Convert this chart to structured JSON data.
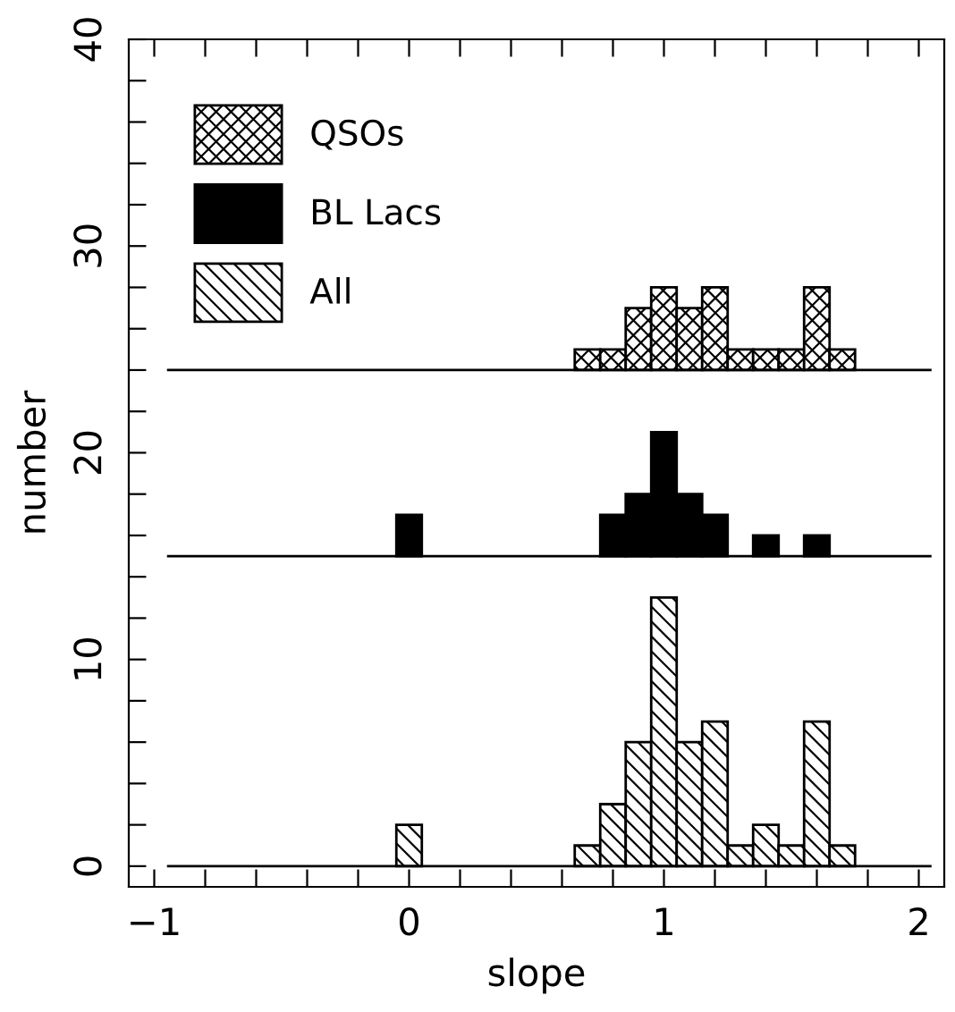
{
  "chart_data": {
    "type": "histogram",
    "xlabel": "slope",
    "ylabel": "number",
    "bins": [
      -0.95,
      -0.85,
      -0.75,
      -0.65,
      -0.55,
      -0.45,
      -0.35,
      -0.25,
      -0.15,
      -0.05,
      0.05,
      0.15,
      0.25,
      0.35,
      0.45,
      0.55,
      0.65,
      0.75,
      0.85,
      0.95,
      1.05,
      1.15,
      1.25,
      1.35,
      1.45,
      1.55,
      1.65,
      1.75,
      1.85,
      1.95,
      2.05
    ],
    "series": [
      {
        "name": "QSOs",
        "color": "#000000",
        "base": [
          null,
          null,
          null,
          null,
          null,
          null,
          null,
          null,
          null,
          null,
          null,
          null,
          null,
          null,
          null,
          null,
          24,
          24,
          24,
          24,
          24,
          24,
          24,
          24,
          24,
          24,
          24,
          null,
          null,
          null
        ],
        "values": [
          0,
          0,
          0,
          0,
          0,
          0,
          0,
          0,
          0,
          0,
          0,
          0,
          0,
          0,
          0,
          0,
          1,
          1,
          3,
          4,
          3,
          4,
          1,
          1,
          1,
          4,
          1,
          0,
          0,
          0
        ]
      },
      {
        "name": "BL Lacs",
        "color": "#000000",
        "base": [
          null,
          null,
          null,
          null,
          null,
          null,
          null,
          null,
          null,
          15,
          null,
          null,
          null,
          null,
          null,
          null,
          null,
          15,
          15,
          15,
          15,
          15,
          null,
          15,
          null,
          15,
          null,
          null,
          null,
          null
        ],
        "values": [
          0,
          0,
          0,
          0,
          0,
          0,
          0,
          0,
          0,
          2,
          0,
          0,
          0,
          0,
          0,
          0,
          0,
          2,
          3,
          6,
          3,
          2,
          0,
          1,
          0,
          1,
          0,
          0,
          0,
          0
        ]
      },
      {
        "name": "All",
        "color": "#000000",
        "base": [
          null,
          null,
          null,
          null,
          null,
          null,
          null,
          null,
          null,
          0,
          null,
          null,
          null,
          null,
          null,
          null,
          0,
          0,
          0,
          0,
          0,
          0,
          0,
          0,
          0,
          0,
          0,
          null,
          null,
          null
        ],
        "values": [
          0,
          0,
          0,
          0,
          0,
          0,
          0,
          0,
          0,
          2,
          0,
          0,
          0,
          0,
          0,
          0,
          1,
          3,
          6,
          13,
          6,
          7,
          1,
          2,
          1,
          7,
          1,
          0,
          0,
          0
        ]
      }
    ],
    "ref_lines": [
      {
        "axis": "y",
        "value": 24,
        "color": "#000000"
      },
      {
        "axis": "y",
        "value": 15,
        "color": "#000000"
      },
      {
        "axis": "y",
        "value": 0,
        "color": "#000000"
      }
    ],
    "xlim": [
      -1.1,
      2.1
    ],
    "ylim": [
      -1,
      40
    ],
    "xticks": [
      -1,
      {
        "value": -0.8,
        "label": null
      },
      {
        "value": -0.6,
        "label": null
      },
      {
        "value": -0.4,
        "label": null
      },
      {
        "value": -0.2,
        "label": null
      },
      0,
      {
        "value": 0.2,
        "label": null
      },
      {
        "value": 0.4,
        "label": null
      },
      {
        "value": 0.6,
        "label": null
      },
      {
        "value": 0.8,
        "label": null
      },
      1,
      {
        "value": 1.2,
        "label": null
      },
      {
        "value": 1.4,
        "label": null
      },
      {
        "value": 1.6,
        "label": null
      },
      {
        "value": 1.8,
        "label": null
      },
      2
    ],
    "yticks": [
      0,
      {
        "value": 2,
        "label": null
      },
      {
        "value": 4,
        "label": null
      },
      {
        "value": 6,
        "label": null
      },
      {
        "value": 8,
        "label": null
      },
      10,
      {
        "value": 12,
        "label": null
      },
      {
        "value": 14,
        "label": null
      },
      {
        "value": 16,
        "label": null
      },
      {
        "value": 18,
        "label": null
      },
      20,
      {
        "value": 22,
        "label": null
      },
      {
        "value": 24,
        "label": null
      },
      {
        "value": 26,
        "label": null
      },
      {
        "value": 28,
        "label": null
      },
      30,
      {
        "value": 32,
        "label": null
      },
      {
        "value": 34,
        "label": null
      },
      {
        "value": 36,
        "label": null
      },
      {
        "value": 38,
        "label": null
      },
      40
    ],
    "grid": false,
    "legend": "top left"
  }
}
